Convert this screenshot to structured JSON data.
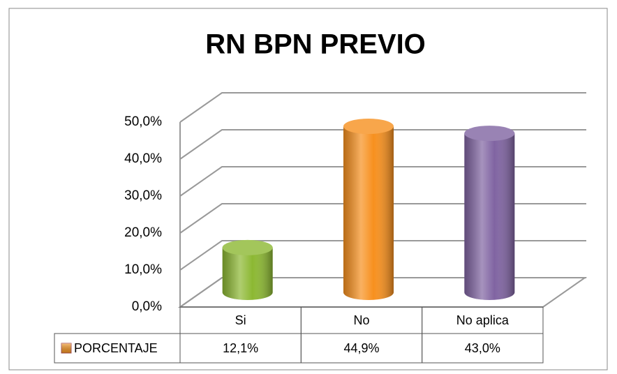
{
  "chart_data": {
    "type": "bar3d",
    "title": "RN BPN PREVIO",
    "categories": [
      "Si",
      "No",
      "No aplica"
    ],
    "series": [
      {
        "name": "PORCENTAJE",
        "color": "#f39320",
        "values": [
          12.1,
          44.9,
          43.0
        ],
        "value_labels": [
          "12,1%",
          "44,9%",
          "43,0%"
        ]
      }
    ],
    "bar_colors": [
      "#8cb832",
      "#f7901e",
      "#8064a2"
    ],
    "ylim": [
      0,
      50
    ],
    "yticks": [
      {
        "value": 0,
        "label": "0,0%"
      },
      {
        "value": 10,
        "label": "10,0%"
      },
      {
        "value": 20,
        "label": "20,0%"
      },
      {
        "value": 30,
        "label": "30,0%"
      },
      {
        "value": 40,
        "label": "40,0%"
      },
      {
        "value": 50,
        "label": "50,0%"
      }
    ],
    "grid": true
  }
}
